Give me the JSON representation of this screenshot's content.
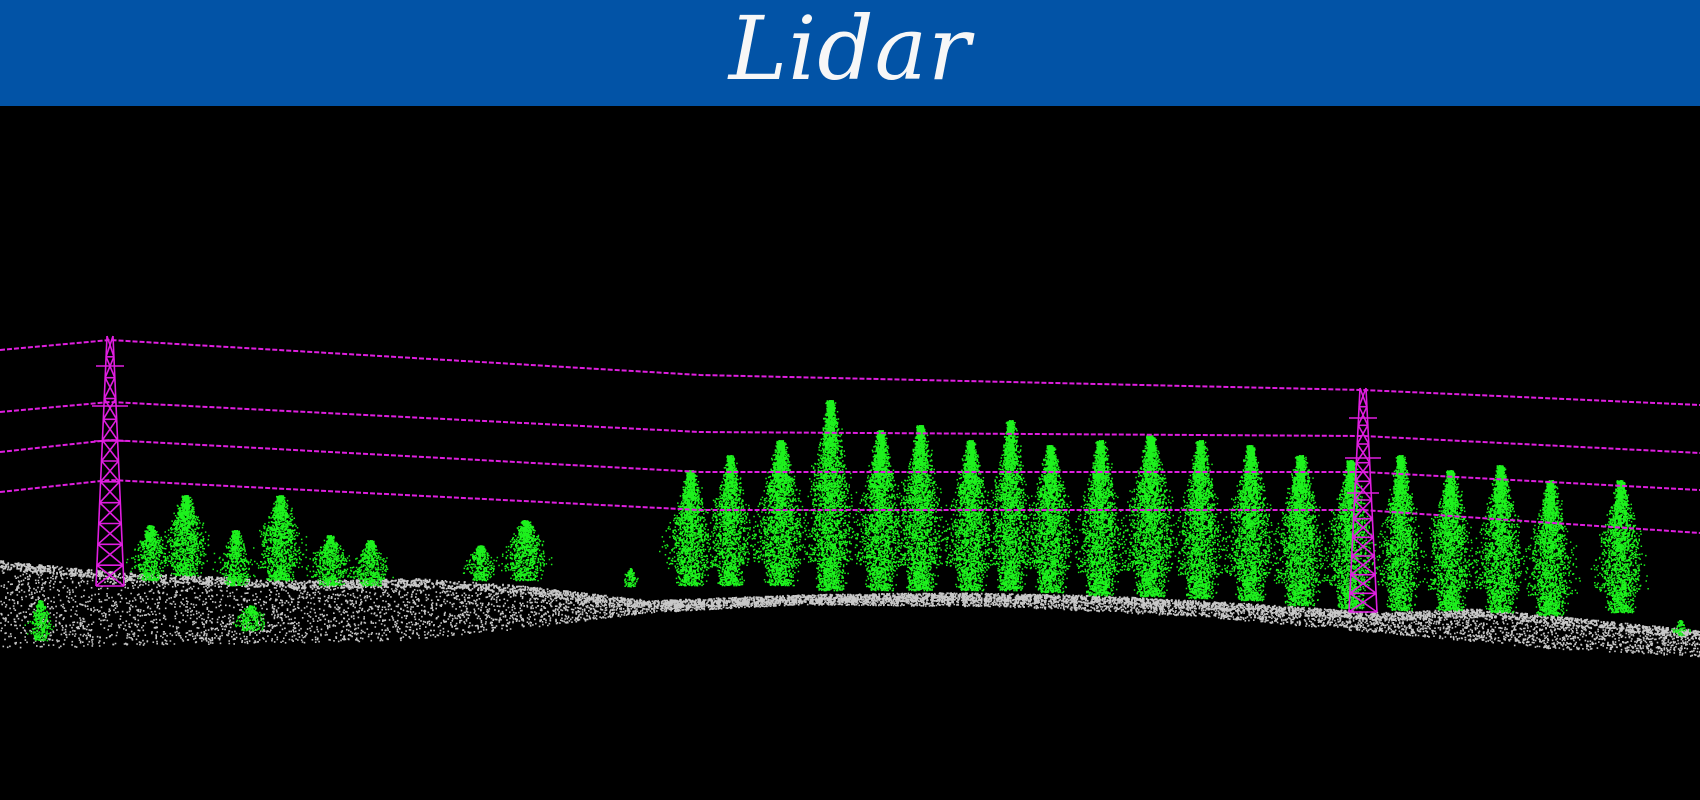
{
  "header": {
    "title": "Lidar"
  },
  "scene": {
    "classes": [
      {
        "name": "ground",
        "color": "#c8c8c8"
      },
      {
        "name": "vegetation",
        "color": "#1df21d"
      },
      {
        "name": "power-infrastructure",
        "color": "#e01ee0"
      }
    ]
  }
}
